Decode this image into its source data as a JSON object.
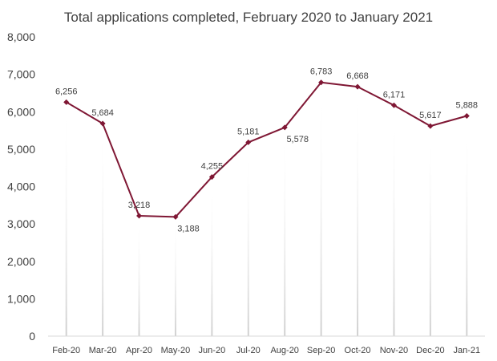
{
  "chart_data": {
    "type": "line",
    "title": "Total applications completed, February 2020 to January 2021",
    "xlabel": "",
    "ylabel": "",
    "categories": [
      "Feb-20",
      "Mar-20",
      "Apr-20",
      "May-20",
      "Jun-20",
      "Jul-20",
      "Aug-20",
      "Sep-20",
      "Oct-20",
      "Nov-20",
      "Dec-20",
      "Jan-21"
    ],
    "series": [
      {
        "values": [
          6256,
          5684,
          3218,
          3188,
          4255,
          5181,
          5578,
          6783,
          6668,
          6171,
          5617,
          5888
        ],
        "labels": [
          "6,256",
          "5,684",
          "3,218",
          "3,188",
          "4,255",
          "5,181",
          "5,578",
          "6,783",
          "6,668",
          "6,171",
          "5,617",
          "5,888"
        ],
        "color": "#7f1734"
      }
    ],
    "ylim": [
      0,
      8000
    ],
    "yticks": [
      0,
      1000,
      2000,
      3000,
      4000,
      5000,
      6000,
      7000,
      8000
    ],
    "ytick_labels": [
      "0",
      "1,000",
      "2,000",
      "3,000",
      "4,000",
      "5,000",
      "6,000",
      "7,000",
      "8,000"
    ],
    "grid": {
      "vertical_dropline_gradient": true,
      "horizontal": false
    },
    "legend": "none",
    "colors": {
      "line": "#7f1734",
      "text": "#404040",
      "axis": "#d9d9d9",
      "gradient_top": "#ffffff",
      "gradient_bottom": "#d9d9d9"
    }
  }
}
